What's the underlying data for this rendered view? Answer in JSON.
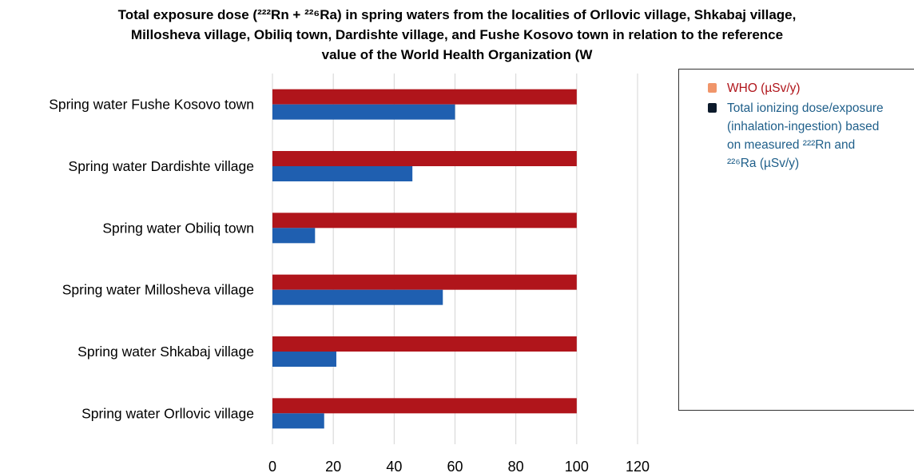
{
  "chart_data": {
    "type": "bar",
    "orientation": "horizontal",
    "title_lines": [
      "Total exposure dose (²²²Rn + ²²⁶Ra) in spring waters from the localities of Orllovic village, Shkabaj village,",
      "Millosheva village, Obiliq town, Dardishte village, and Fushe Kosovo town in relation to the reference",
      "value of the World Health Organization (W"
    ],
    "categories": [
      "Spring water Fushe Kosovo town",
      "Spring water Dardishte village",
      "Spring water Obiliq town",
      "Spring water Millosheva village",
      "Spring water Shkabaj village",
      "Spring water Orllovic village"
    ],
    "series": [
      {
        "name": "WHO (µSv/y)",
        "color": "#b0151b",
        "values": [
          100,
          100,
          100,
          100,
          100,
          100
        ]
      },
      {
        "name": "Total ionizing dose/exposure (inhalation-ingestion) based on measured ²²²Rn and ²²⁶Ra (µSv/y)",
        "color": "#1f5fb0",
        "values": [
          60,
          46,
          14,
          56,
          21,
          17
        ]
      }
    ],
    "xlim": [
      0,
      120
    ],
    "xticks": [
      0,
      20,
      40,
      60,
      80,
      100,
      120
    ],
    "xtick_labels": [
      "0",
      "20",
      "40",
      "60",
      "80",
      "100",
      "120"
    ],
    "grid": "vertical",
    "legend_position": "right"
  },
  "legend": {
    "who_label": "WHO (µSv/y)",
    "total_label": "Total ionizing dose/exposure (inhalation-ingestion) based on measured ²²²Rn and ²²⁶Ra (µSv/y)",
    "who_swatch_color": "#f0956a",
    "total_swatch_color": "#0c1a2b"
  }
}
